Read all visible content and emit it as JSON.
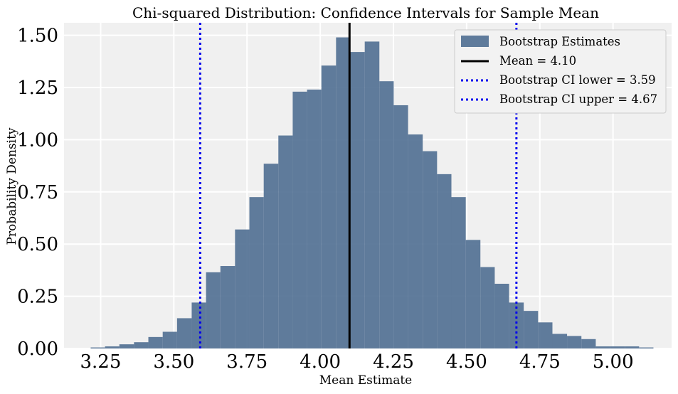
{
  "chart_data": {
    "type": "bar",
    "title": "Chi-squared Distribution: Confidence Intervals for Sample Mean",
    "xlabel": "Mean Estimate",
    "ylabel": "Probability Density",
    "xlim": [
      3.125,
      5.2
    ],
    "ylim": [
      0,
      1.56
    ],
    "grid": true,
    "legend_position": "top-right",
    "xticks": [
      "3.25",
      "3.50",
      "3.75",
      "4.00",
      "4.25",
      "4.50",
      "4.75",
      "5.00"
    ],
    "xtick_values": [
      3.25,
      3.5,
      3.75,
      4.0,
      4.25,
      4.5,
      4.75,
      5.0
    ],
    "yticks": [
      "0.00",
      "0.25",
      "0.50",
      "0.75",
      "1.00",
      "1.25",
      "1.50"
    ],
    "ytick_values": [
      0,
      0.25,
      0.5,
      0.75,
      1.0,
      1.25,
      1.5
    ],
    "histogram": {
      "name": "Bootstrap Estimates",
      "color": "#4a6a8e",
      "bin_edges": [
        3.216,
        3.265,
        3.314,
        3.364,
        3.413,
        3.462,
        3.511,
        3.561,
        3.61,
        3.659,
        3.709,
        3.758,
        3.807,
        3.857,
        3.906,
        3.955,
        4.004,
        4.054,
        4.103,
        4.152,
        4.202,
        4.251,
        4.3,
        4.35,
        4.399,
        4.448,
        4.497,
        4.547,
        4.596,
        4.645,
        4.695,
        4.744,
        4.793,
        4.843,
        4.892,
        4.941,
        4.99,
        5.04,
        5.089,
        5.138
      ],
      "values": [
        0.005,
        0.01,
        0.02,
        0.03,
        0.055,
        0.08,
        0.145,
        0.22,
        0.365,
        0.395,
        0.57,
        0.725,
        0.885,
        1.02,
        1.23,
        1.24,
        1.355,
        1.49,
        1.42,
        1.47,
        1.28,
        1.165,
        1.025,
        0.945,
        0.835,
        0.725,
        0.52,
        0.39,
        0.31,
        0.22,
        0.18,
        0.125,
        0.07,
        0.06,
        0.045,
        0.01,
        0.01,
        0.01,
        0.005
      ]
    },
    "lines": [
      {
        "name": "Mean = 4.10",
        "x": 4.1,
        "color": "#000000",
        "style": "solid"
      },
      {
        "name": "Bootstrap CI lower = 3.59",
        "x": 3.59,
        "color": "#0000ee",
        "style": "dotted"
      },
      {
        "name": "Bootstrap CI upper = 4.67",
        "x": 4.67,
        "color": "#0000ee",
        "style": "dotted"
      }
    ],
    "legend": [
      "Bootstrap Estimates",
      "Mean = 4.10",
      "Bootstrap CI lower = 3.59",
      "Bootstrap CI upper = 4.67"
    ]
  }
}
